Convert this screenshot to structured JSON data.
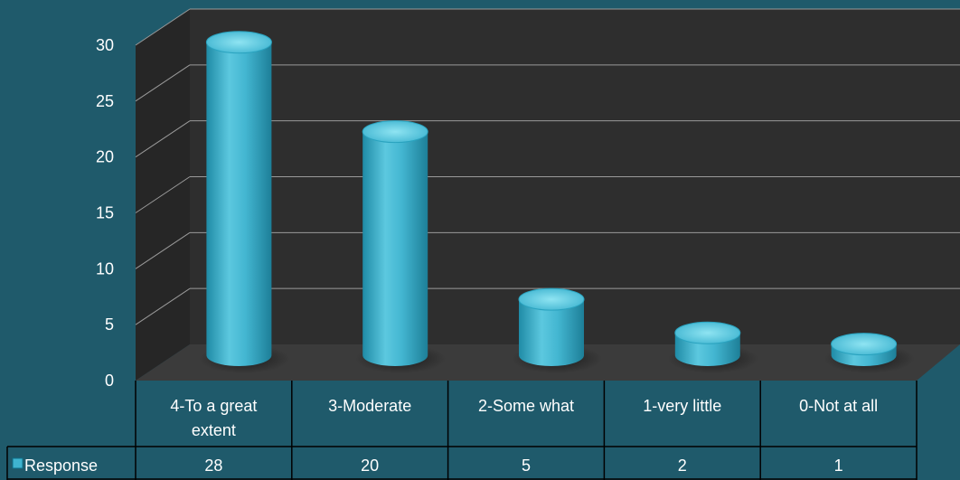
{
  "chart_data": {
    "type": "bar",
    "categories": [
      [
        "4-To a great",
        "extent"
      ],
      [
        "3-Moderate"
      ],
      [
        "2-Some what"
      ],
      [
        "1-very little"
      ],
      [
        "0-Not at all"
      ]
    ],
    "series": [
      {
        "name": "Response",
        "values": [
          28,
          20,
          5,
          2,
          1
        ]
      }
    ],
    "ylim": [
      0,
      30
    ],
    "yticks": [
      0,
      5,
      10,
      15,
      20,
      25,
      30
    ],
    "grid": true,
    "legend": "data-table-row",
    "colors": {
      "background": "#1f5a6b",
      "wall": "#2e2e2e",
      "floor": "#3a3a3a",
      "bar": "#3fb4d0",
      "bar_top": "#6fd6ea",
      "grid": "#9a9a9a",
      "text": "#ffffff"
    }
  }
}
